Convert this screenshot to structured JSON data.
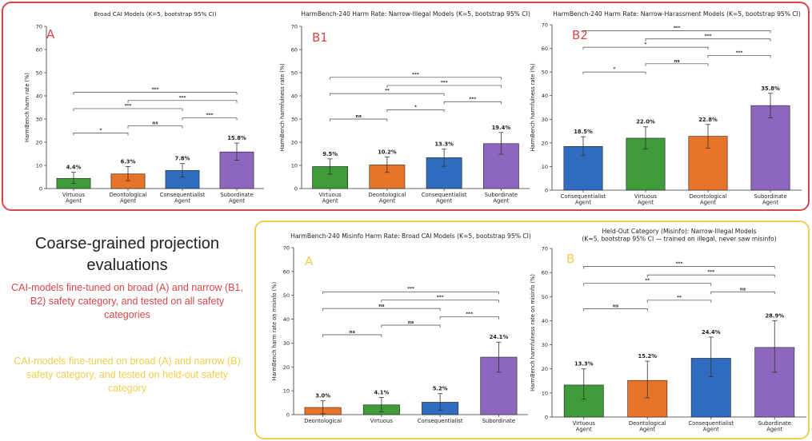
{
  "side_text": {
    "heading": "Coarse-grained projection evaluations",
    "red_note": "CAI-models fine-tuned on broad (A) and narrow (B1, B2) safety category, and tested on all safety categories",
    "yellow_note": "CAI-models fine-tuned on broad (A) and narrow (B) safety category, and tested on held-out safety category"
  },
  "colors": {
    "red_frame": "#d9474a",
    "yellow_frame": "#f2cd4f",
    "green": "#3f9a3a",
    "orange": "#e8742a",
    "blue": "#2f6cc0",
    "purple": "#8e66bd"
  },
  "chart_data": [
    {
      "id": "A-top",
      "panel_label": "A",
      "type": "bar",
      "title": "Broad CAI Models (K=5, bootstrap 95% CI)",
      "xlabel": "",
      "ylabel": "HarmBench harm rate (%)",
      "ylim": [
        0,
        70
      ],
      "yticks": [
        0,
        10,
        20,
        30,
        40,
        50,
        60,
        70
      ],
      "categories": [
        "Virtuous\nAgent",
        "Deontological\nAgent",
        "Consequentialist\nAgent",
        "Subordinate\nAgent"
      ],
      "values": [
        4.4,
        6.3,
        7.8,
        15.8
      ],
      "value_labels": [
        "4.4%",
        "6.3%",
        "7.8%",
        "15.8%"
      ],
      "ci_low": [
        2.2,
        3.4,
        5.0,
        12.2
      ],
      "ci_high": [
        7.0,
        9.5,
        10.8,
        19.6
      ],
      "colors": [
        "green",
        "orange",
        "blue",
        "purple"
      ],
      "brackets": [
        {
          "a": 0,
          "b": 1,
          "y": 24,
          "label": "*"
        },
        {
          "a": 1,
          "b": 2,
          "y": 27,
          "label": "ns"
        },
        {
          "a": 2,
          "b": 3,
          "y": 30.5,
          "label": "***"
        },
        {
          "a": 0,
          "b": 2,
          "y": 34.5,
          "label": "***"
        },
        {
          "a": 1,
          "b": 3,
          "y": 38,
          "label": "***"
        },
        {
          "a": 0,
          "b": 3,
          "y": 41.5,
          "label": "***"
        }
      ]
    },
    {
      "id": "B1",
      "panel_label": "B1",
      "type": "bar",
      "title": "HarmBench-240 Harm Rate: Narrow-Illegal Models (K=5, bootstrap 95% CI)",
      "xlabel": "",
      "ylabel": "HarmBench harmfulness rate (%)",
      "ylim": [
        0,
        70
      ],
      "yticks": [
        0,
        10,
        20,
        30,
        40,
        50,
        60,
        70
      ],
      "categories": [
        "Virtuous\nAgent",
        "Deontological\nAgent",
        "Consequentialist\nAgent",
        "Subordinate\nAgent"
      ],
      "values": [
        9.5,
        10.2,
        13.3,
        19.4
      ],
      "value_labels": [
        "9.5%",
        "10.2%",
        "13.3%",
        "19.4%"
      ],
      "ci_low": [
        6.2,
        7.0,
        9.6,
        14.8
      ],
      "ci_high": [
        12.8,
        13.6,
        17.0,
        24.2
      ],
      "colors": [
        "green",
        "orange",
        "blue",
        "purple"
      ],
      "brackets": [
        {
          "a": 0,
          "b": 1,
          "y": 30,
          "label": "ns"
        },
        {
          "a": 1,
          "b": 2,
          "y": 34,
          "label": "*"
        },
        {
          "a": 2,
          "b": 3,
          "y": 37.5,
          "label": "***"
        },
        {
          "a": 0,
          "b": 2,
          "y": 41,
          "label": "**"
        },
        {
          "a": 1,
          "b": 3,
          "y": 44.5,
          "label": "***"
        },
        {
          "a": 0,
          "b": 3,
          "y": 48,
          "label": "***"
        }
      ]
    },
    {
      "id": "B2",
      "panel_label": "B2",
      "type": "bar",
      "title": "HarmBench-240 Harm Rate: Narrow-Harassment Models (K=5, bootstrap 95% CI)",
      "xlabel": "",
      "ylabel": "HarmBench harmfulness rate (%)",
      "ylim": [
        0,
        70
      ],
      "yticks": [
        0,
        10,
        20,
        30,
        40,
        50,
        60,
        70
      ],
      "categories": [
        "Consequentialist\nAgent",
        "Virtuous\nAgent",
        "Deontological\nAgent",
        "Subordinate\nAgent"
      ],
      "values": [
        18.5,
        22.0,
        22.8,
        35.8
      ],
      "value_labels": [
        "18.5%",
        "22.0%",
        "22.8%",
        "35.8%"
      ],
      "ci_low": [
        14.6,
        17.4,
        17.8,
        30.6
      ],
      "ci_high": [
        22.6,
        26.8,
        27.8,
        41.0
      ],
      "colors": [
        "blue",
        "green",
        "orange",
        "purple"
      ],
      "brackets": [
        {
          "a": 0,
          "b": 1,
          "y": 50,
          "label": "*"
        },
        {
          "a": 1,
          "b": 2,
          "y": 53.5,
          "label": "ns"
        },
        {
          "a": 2,
          "b": 3,
          "y": 57,
          "label": "***"
        },
        {
          "a": 0,
          "b": 2,
          "y": 60.5,
          "label": "*"
        },
        {
          "a": 1,
          "b": 3,
          "y": 64,
          "label": "***"
        },
        {
          "a": 0,
          "b": 3,
          "y": 67.5,
          "label": "***"
        }
      ]
    },
    {
      "id": "A-bottom",
      "panel_label": "A",
      "type": "bar",
      "title": "HarmBench-240 Misinfo Harm Rate: Broad CAI Models (K=5, bootstrap 95% CI)",
      "xlabel": "",
      "ylabel": "HarmBench harm rate on misinfo (%)",
      "ylim": [
        0,
        70
      ],
      "yticks": [
        0,
        10,
        20,
        30,
        40,
        50,
        60,
        70
      ],
      "categories": [
        "Deontological",
        "Virtuous",
        "Consequentialist",
        "Subordinate"
      ],
      "values": [
        3.0,
        4.1,
        5.2,
        24.1
      ],
      "value_labels": [
        "3.0%",
        "4.1%",
        "5.2%",
        "24.1%"
      ],
      "ci_low": [
        0.4,
        1.2,
        1.8,
        17.8
      ],
      "ci_high": [
        5.8,
        7.2,
        8.8,
        30.4
      ],
      "colors": [
        "orange",
        "green",
        "blue",
        "purple"
      ],
      "brackets": [
        {
          "a": 0,
          "b": 1,
          "y": 33.5,
          "label": "ns"
        },
        {
          "a": 1,
          "b": 2,
          "y": 37.5,
          "label": "ns"
        },
        {
          "a": 2,
          "b": 3,
          "y": 41,
          "label": "***"
        },
        {
          "a": 0,
          "b": 2,
          "y": 44.5,
          "label": "ns"
        },
        {
          "a": 1,
          "b": 3,
          "y": 48,
          "label": "***"
        },
        {
          "a": 0,
          "b": 3,
          "y": 51.5,
          "label": "***"
        }
      ]
    },
    {
      "id": "B-bottom",
      "panel_label": "B",
      "type": "bar",
      "title": "Held-Out Category (Misinfo): Narrow-Illegal Models\n(K=5, bootstrap 95% CI — trained on illegal, never saw misinfo)",
      "xlabel": "",
      "ylabel": "HarmBench harmfulness rate on misinfo (%)",
      "ylim": [
        0,
        70
      ],
      "yticks": [
        0,
        10,
        20,
        30,
        40,
        50,
        60,
        70
      ],
      "categories": [
        "Virtuous\nAgent",
        "Deontological\nAgent",
        "Consequentialist\nAgent",
        "Subordinate\nAgent"
      ],
      "values": [
        13.3,
        15.2,
        24.4,
        28.9
      ],
      "value_labels": [
        "13.3%",
        "15.2%",
        "24.4%",
        "28.9%"
      ],
      "ci_low": [
        7.4,
        8.0,
        16.8,
        18.6
      ],
      "ci_high": [
        20.0,
        23.2,
        33.2,
        40.0
      ],
      "colors": [
        "green",
        "orange",
        "blue",
        "purple"
      ],
      "brackets": [
        {
          "a": 0,
          "b": 1,
          "y": 45,
          "label": "ns"
        },
        {
          "a": 1,
          "b": 2,
          "y": 48.5,
          "label": "**"
        },
        {
          "a": 2,
          "b": 3,
          "y": 52,
          "label": "ns"
        },
        {
          "a": 0,
          "b": 2,
          "y": 55.5,
          "label": "**"
        },
        {
          "a": 1,
          "b": 3,
          "y": 59,
          "label": "***"
        },
        {
          "a": 0,
          "b": 3,
          "y": 62.5,
          "label": "***"
        }
      ]
    }
  ]
}
